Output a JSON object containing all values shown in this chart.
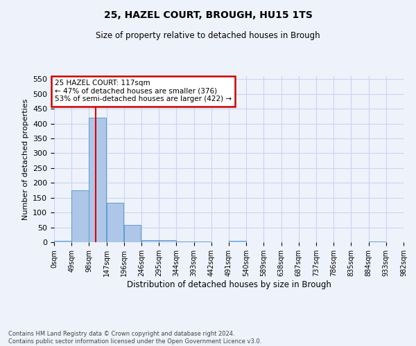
{
  "title1": "25, HAZEL COURT, BROUGH, HU15 1TS",
  "title2": "Size of property relative to detached houses in Brough",
  "xlabel": "Distribution of detached houses by size in Brough",
  "ylabel": "Number of detached properties",
  "bar_values": [
    5,
    175,
    420,
    132,
    58,
    8,
    8,
    3,
    3,
    0,
    5,
    0,
    0,
    0,
    0,
    0,
    0,
    0,
    3
  ],
  "bin_edges": [
    0,
    49,
    98,
    147,
    196,
    245,
    294,
    343,
    392,
    441,
    490,
    539,
    588,
    637,
    686,
    735,
    784,
    833,
    882,
    931
  ],
  "x_tick_labels": [
    "0sqm",
    "49sqm",
    "98sqm",
    "147sqm",
    "196sqm",
    "246sqm",
    "295sqm",
    "344sqm",
    "393sqm",
    "442sqm",
    "491sqm",
    "540sqm",
    "589sqm",
    "638sqm",
    "687sqm",
    "737sqm",
    "786sqm",
    "835sqm",
    "884sqm",
    "933sqm",
    "982sqm"
  ],
  "bar_color": "#aec6e8",
  "bar_edge_color": "#5a9fd4",
  "vline_x": 117,
  "vline_color": "#e00000",
  "annotation_text": "25 HAZEL COURT: 117sqm\n← 47% of detached houses are smaller (376)\n53% of semi-detached houses are larger (422) →",
  "annotation_box_color": "#ffffff",
  "annotation_box_edge": "#cc0000",
  "ylim": [
    0,
    560
  ],
  "yticks": [
    0,
    50,
    100,
    150,
    200,
    250,
    300,
    350,
    400,
    450,
    500,
    550
  ],
  "footer_text": "Contains HM Land Registry data © Crown copyright and database right 2024.\nContains public sector information licensed under the Open Government Licence v3.0.",
  "bg_color": "#eef2fb",
  "plot_bg_color": "#eef2fb",
  "grid_color": "#c8d4f0"
}
